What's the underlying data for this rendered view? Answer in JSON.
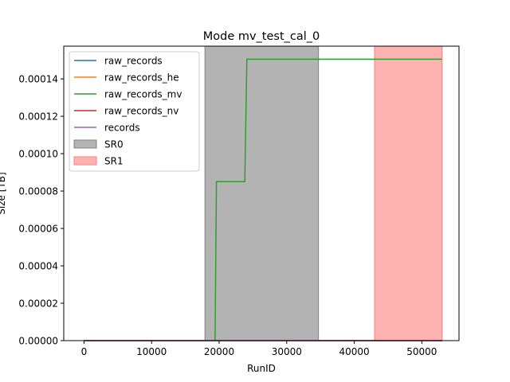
{
  "chart_data": {
    "type": "line",
    "title": "Mode mv_test_cal_0",
    "xlabel": "RunID",
    "ylabel": "Size [TB]",
    "xlim": [
      -3000,
      55500
    ],
    "ylim": [
      0,
      0.0001575
    ],
    "grid": false,
    "legend_position": "upper-left",
    "x_ticks": [
      {
        "value": 0,
        "label": "0"
      },
      {
        "value": 10000,
        "label": "10000"
      },
      {
        "value": 20000,
        "label": "20000"
      },
      {
        "value": 30000,
        "label": "30000"
      },
      {
        "value": 40000,
        "label": "40000"
      },
      {
        "value": 50000,
        "label": "50000"
      }
    ],
    "y_ticks": [
      {
        "value": 0,
        "label": "0.00000"
      },
      {
        "value": 2e-05,
        "label": "0.00002"
      },
      {
        "value": 4e-05,
        "label": "0.00004"
      },
      {
        "value": 6e-05,
        "label": "0.00006"
      },
      {
        "value": 8e-05,
        "label": "0.00008"
      },
      {
        "value": 0.0001,
        "label": "0.00010"
      },
      {
        "value": 0.00012,
        "label": "0.00012"
      },
      {
        "value": 0.00014,
        "label": "0.00014"
      }
    ],
    "spans": [
      {
        "name": "SR0",
        "x": [
          17900,
          34700
        ],
        "color": "#808080",
        "opacity": 0.6
      },
      {
        "name": "SR1",
        "x": [
          43000,
          53000
        ],
        "color": "#ff7f7f",
        "opacity": 0.6
      }
    ],
    "series": [
      {
        "name": "raw_records",
        "color": "#1f77b4",
        "x": [
          0,
          53000
        ],
        "y": [
          0,
          0
        ]
      },
      {
        "name": "raw_records_he",
        "color": "#ff7f0e",
        "x": [
          0,
          53000
        ],
        "y": [
          0,
          0
        ]
      },
      {
        "name": "raw_records_mv",
        "color": "#2ca02c",
        "x": [
          19400,
          19600,
          23800,
          24100,
          53000
        ],
        "y": [
          0,
          8.5e-05,
          8.5e-05,
          0.0001505,
          0.0001505
        ]
      },
      {
        "name": "raw_records_nv",
        "color": "#d62728",
        "x": [
          0,
          53000
        ],
        "y": [
          0,
          0
        ]
      },
      {
        "name": "records",
        "color": "#9467bd",
        "x": [
          0,
          53000
        ],
        "y": [
          0,
          0
        ]
      }
    ]
  }
}
